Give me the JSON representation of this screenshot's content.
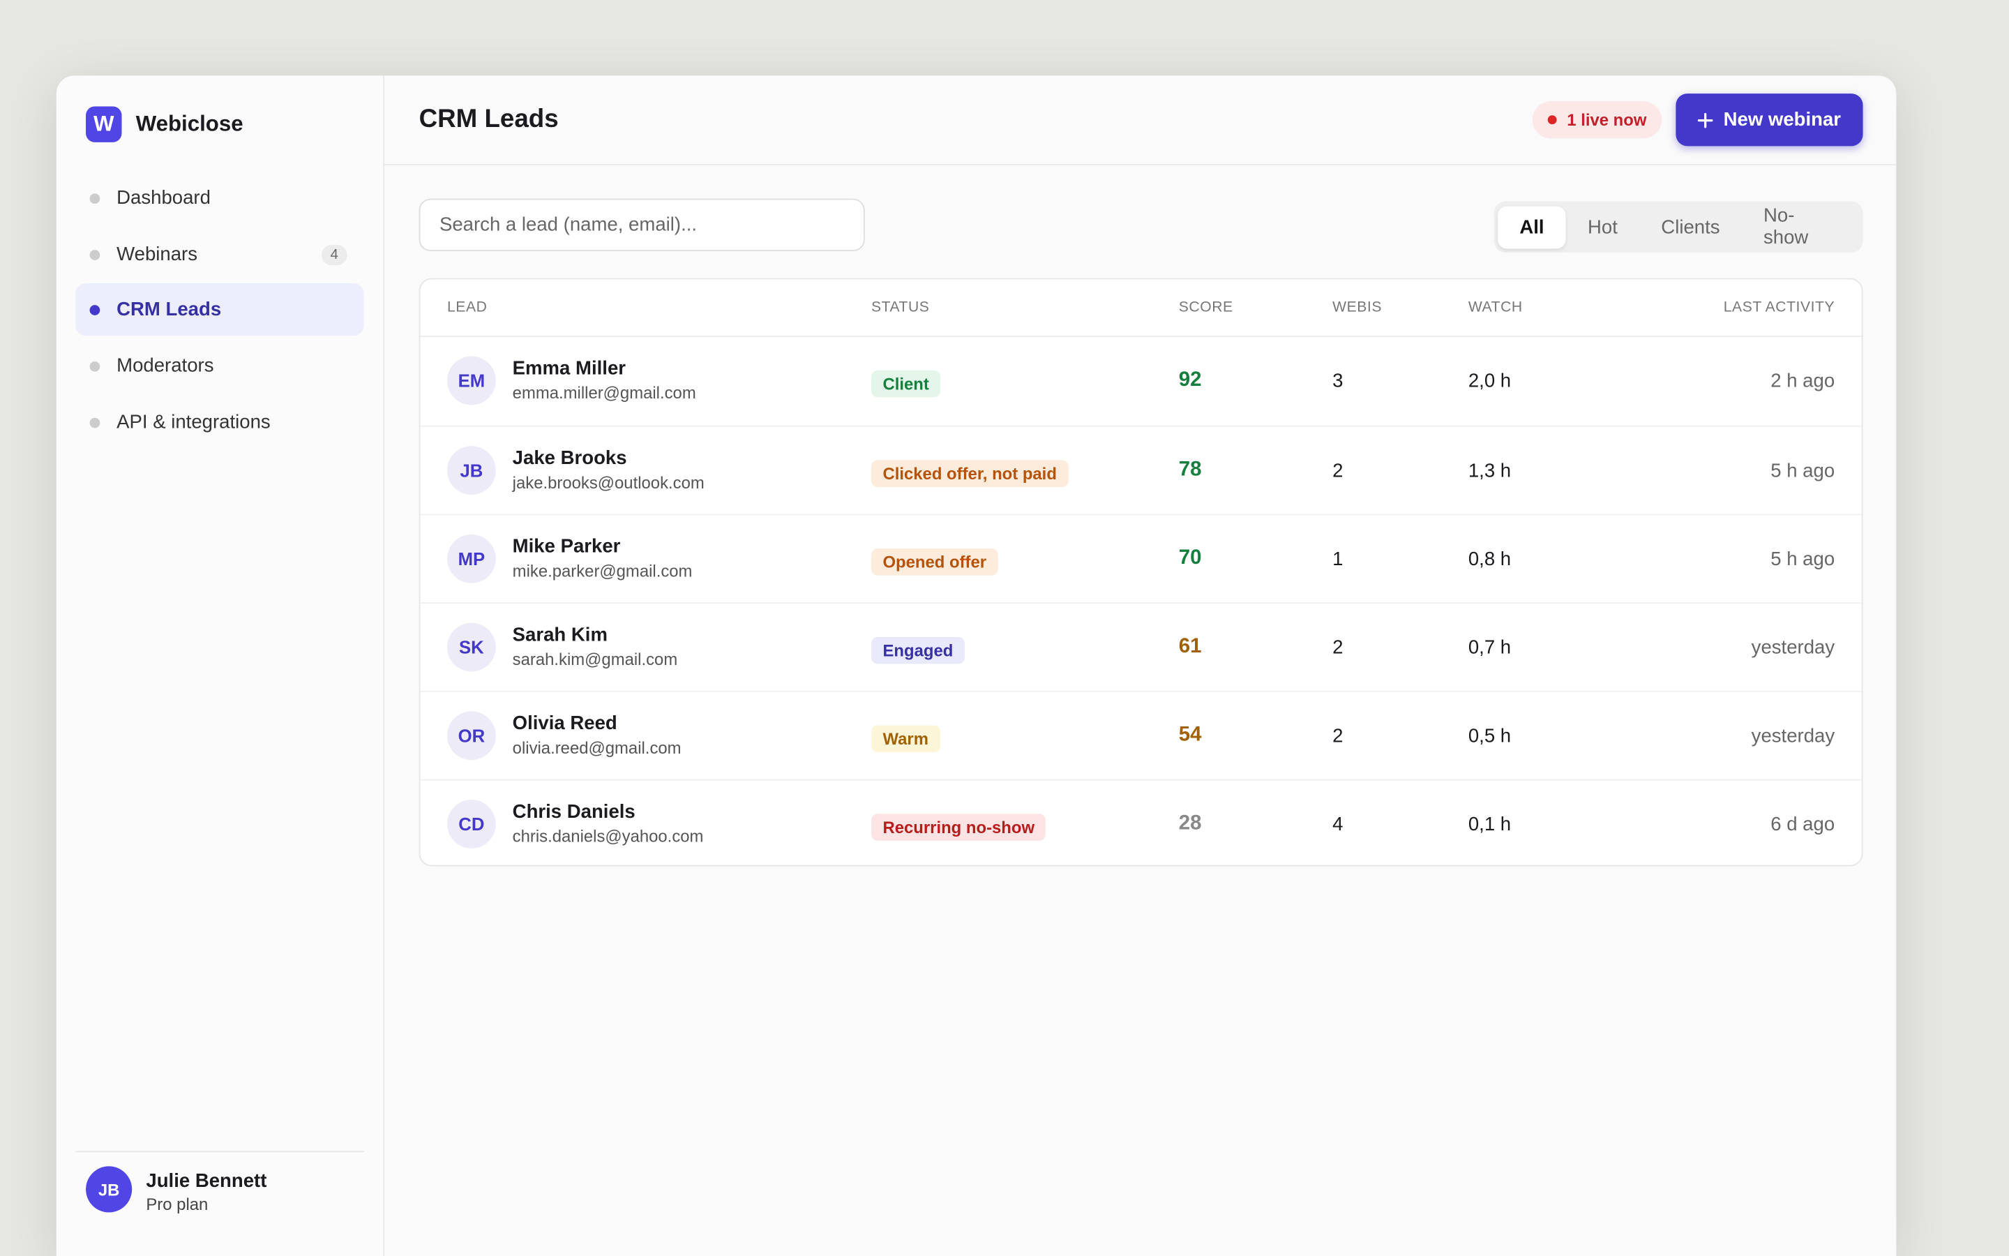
{
  "app": {
    "brand": "Webiclose",
    "logo": "W",
    "nav": [
      {
        "label": "Dashboard"
      },
      {
        "label": "Webinars",
        "badge": "4"
      },
      {
        "label": "CRM Leads"
      },
      {
        "label": "Moderators"
      },
      {
        "label": "API & integrations"
      }
    ],
    "user": {
      "initials": "JB",
      "name": "Julie Bennett",
      "plan": "Pro plan"
    }
  },
  "header": {
    "title": "CRM Leads",
    "live": "1 live now",
    "button": "New webinar"
  },
  "search": {
    "placeholder": "Search a lead (name, email)..."
  },
  "filters": [
    "All",
    "Hot",
    "Clients",
    "No-show"
  ],
  "table": {
    "columns": [
      "LEAD",
      "STATUS",
      "SCORE",
      "WEBIS",
      "WATCH",
      "LAST ACTIVITY"
    ],
    "rows": [
      {
        "initials": "EM",
        "name": "Emma Miller",
        "email": "emma.miller@gmail.com",
        "status": "Client",
        "score": 92,
        "webis": 3,
        "watch": "2,0 h",
        "last": "2 h ago"
      },
      {
        "initials": "JB",
        "name": "Jake Brooks",
        "email": "jake.brooks@outlook.com",
        "status": "Clicked offer, not paid",
        "score": 78,
        "webis": 2,
        "watch": "1,3 h",
        "last": "5 h ago"
      },
      {
        "initials": "MP",
        "name": "Mike Parker",
        "email": "mike.parker@gmail.com",
        "status": "Opened offer",
        "score": 70,
        "webis": 1,
        "watch": "0,8 h",
        "last": "5 h ago"
      },
      {
        "initials": "SK",
        "name": "Sarah Kim",
        "email": "sarah.kim@gmail.com",
        "status": "Engaged",
        "score": 61,
        "webis": 2,
        "watch": "0,7 h",
        "last": "yesterday"
      },
      {
        "initials": "OR",
        "name": "Olivia Reed",
        "email": "olivia.reed@gmail.com",
        "status": "Warm",
        "score": 54,
        "webis": 2,
        "watch": "0,5 h",
        "last": "yesterday"
      },
      {
        "initials": "CD",
        "name": "Chris Daniels",
        "email": "chris.daniels@yahoo.com",
        "status": "Recurring no-show",
        "score": 28,
        "webis": 4,
        "watch": "0,1 h",
        "last": "6 d ago"
      }
    ]
  }
}
